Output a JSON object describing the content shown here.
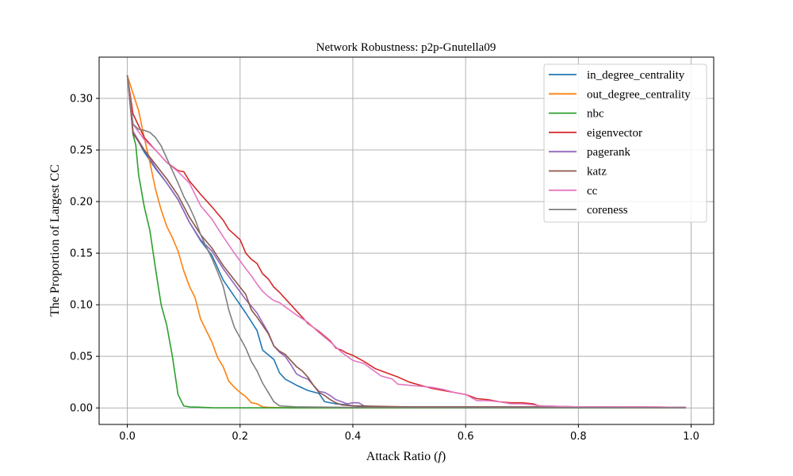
{
  "chart_data": {
    "type": "line",
    "title": "Network Robustness: p2p-Gnutella09",
    "xlabel": "Attack Ratio (",
    "xlabel_var": "f",
    "xlabel_close": ")",
    "ylabel": "The Proportion of Largest CC",
    "xlim": [
      -0.05,
      1.04
    ],
    "ylim": [
      -0.016,
      0.34
    ],
    "xticks": [
      0.0,
      0.2,
      0.4,
      0.6,
      0.8,
      1.0
    ],
    "xtick_labels": [
      "0.0",
      "0.2",
      "0.4",
      "0.6",
      "0.8",
      "1.0"
    ],
    "yticks": [
      0.0,
      0.05,
      0.1,
      0.15,
      0.2,
      0.25,
      0.3
    ],
    "ytick_labels": [
      "0.00",
      "0.05",
      "0.10",
      "0.15",
      "0.20",
      "0.25",
      "0.30"
    ],
    "grid": true,
    "legend_position": "top-right",
    "series": [
      {
        "name": "in_degree_centrality",
        "color": "#1f77b4",
        "x": [
          0,
          0.01,
          0.03,
          0.05,
          0.07,
          0.09,
          0.11,
          0.13,
          0.15,
          0.17,
          0.19,
          0.21,
          0.23,
          0.24,
          0.26,
          0.27,
          0.28,
          0.3,
          0.32,
          0.34,
          0.35,
          0.37,
          0.39,
          0.4,
          0.42,
          0.44,
          0.6,
          0.8,
          0.99
        ],
        "y": [
          0.322,
          0.268,
          0.248,
          0.232,
          0.218,
          0.202,
          0.18,
          0.162,
          0.148,
          0.124,
          0.108,
          0.092,
          0.075,
          0.056,
          0.047,
          0.034,
          0.028,
          0.022,
          0.017,
          0.014,
          0.006,
          0.004,
          0.003,
          0.002,
          0.001,
          0.001,
          0.0005,
          0.0003,
          0.0002
        ]
      },
      {
        "name": "out_degree_centrality",
        "color": "#ff7f0e",
        "x": [
          0,
          0.01,
          0.02,
          0.03,
          0.04,
          0.05,
          0.06,
          0.07,
          0.08,
          0.09,
          0.1,
          0.11,
          0.12,
          0.13,
          0.14,
          0.15,
          0.16,
          0.17,
          0.18,
          0.19,
          0.2,
          0.21,
          0.22,
          0.23,
          0.24,
          0.25,
          0.27,
          0.3,
          0.4,
          0.6,
          0.8,
          0.99
        ],
        "y": [
          0.322,
          0.305,
          0.288,
          0.262,
          0.238,
          0.212,
          0.192,
          0.176,
          0.165,
          0.152,
          0.133,
          0.118,
          0.107,
          0.086,
          0.075,
          0.064,
          0.049,
          0.04,
          0.026,
          0.02,
          0.015,
          0.011,
          0.005,
          0.004,
          0.001,
          0.0006,
          0.0003,
          0.0002,
          0.0001,
          0.0001,
          0.0001,
          0.0001
        ]
      },
      {
        "name": "nbc",
        "color": "#2ca02c",
        "x": [
          0,
          0.005,
          0.01,
          0.015,
          0.02,
          0.03,
          0.04,
          0.05,
          0.06,
          0.07,
          0.08,
          0.09,
          0.1,
          0.11,
          0.15,
          0.3,
          0.6,
          0.99
        ],
        "y": [
          0.322,
          0.3,
          0.265,
          0.255,
          0.226,
          0.195,
          0.172,
          0.135,
          0.1,
          0.08,
          0.05,
          0.013,
          0.002,
          0.001,
          0.0002,
          0.0001,
          0.0001,
          0.0001
        ]
      },
      {
        "name": "eigenvector",
        "color": "#d62728",
        "x": [
          0,
          0.01,
          0.03,
          0.05,
          0.07,
          0.09,
          0.1,
          0.11,
          0.13,
          0.15,
          0.17,
          0.18,
          0.2,
          0.21,
          0.22,
          0.23,
          0.24,
          0.25,
          0.26,
          0.27,
          0.28,
          0.3,
          0.32,
          0.34,
          0.36,
          0.37,
          0.38,
          0.39,
          0.4,
          0.42,
          0.44,
          0.46,
          0.48,
          0.5,
          0.52,
          0.54,
          0.56,
          0.58,
          0.6,
          0.62,
          0.64,
          0.66,
          0.68,
          0.7,
          0.72,
          0.73,
          0.8,
          0.92,
          0.99
        ],
        "y": [
          0.322,
          0.285,
          0.262,
          0.25,
          0.238,
          0.23,
          0.229,
          0.22,
          0.207,
          0.195,
          0.182,
          0.173,
          0.163,
          0.15,
          0.144,
          0.14,
          0.13,
          0.125,
          0.117,
          0.112,
          0.106,
          0.094,
          0.082,
          0.074,
          0.065,
          0.058,
          0.056,
          0.053,
          0.051,
          0.045,
          0.038,
          0.034,
          0.03,
          0.025,
          0.022,
          0.019,
          0.017,
          0.015,
          0.013,
          0.009,
          0.008,
          0.006,
          0.005,
          0.005,
          0.004,
          0.002,
          0.001,
          0.001,
          0.0005
        ]
      },
      {
        "name": "pagerank",
        "color": "#9467bd",
        "x": [
          0,
          0.01,
          0.03,
          0.05,
          0.07,
          0.09,
          0.11,
          0.13,
          0.15,
          0.17,
          0.19,
          0.21,
          0.23,
          0.25,
          0.26,
          0.27,
          0.28,
          0.29,
          0.3,
          0.31,
          0.32,
          0.33,
          0.34,
          0.35,
          0.36,
          0.37,
          0.38,
          0.39,
          0.4,
          0.41,
          0.42,
          0.44,
          0.6,
          0.8,
          0.99
        ],
        "y": [
          0.322,
          0.268,
          0.25,
          0.233,
          0.218,
          0.202,
          0.18,
          0.163,
          0.152,
          0.135,
          0.12,
          0.105,
          0.092,
          0.073,
          0.06,
          0.054,
          0.05,
          0.042,
          0.033,
          0.03,
          0.028,
          0.022,
          0.016,
          0.015,
          0.012,
          0.008,
          0.006,
          0.004,
          0.005,
          0.005,
          0.002,
          0.001,
          0.001,
          0.001,
          0.0005
        ]
      },
      {
        "name": "katz",
        "color": "#8c564b",
        "x": [
          0,
          0.01,
          0.03,
          0.05,
          0.07,
          0.09,
          0.11,
          0.13,
          0.15,
          0.17,
          0.19,
          0.21,
          0.22,
          0.23,
          0.25,
          0.26,
          0.27,
          0.28,
          0.29,
          0.3,
          0.31,
          0.32,
          0.33,
          0.34,
          0.35,
          0.36,
          0.37,
          0.38,
          0.4,
          0.5,
          0.6,
          0.8,
          0.99
        ],
        "y": [
          0.322,
          0.266,
          0.25,
          0.236,
          0.222,
          0.206,
          0.185,
          0.168,
          0.155,
          0.138,
          0.124,
          0.11,
          0.095,
          0.088,
          0.072,
          0.06,
          0.055,
          0.052,
          0.046,
          0.04,
          0.036,
          0.03,
          0.022,
          0.015,
          0.012,
          0.008,
          0.005,
          0.003,
          0.002,
          0.001,
          0.001,
          0.001,
          0.0005
        ]
      },
      {
        "name": "cc",
        "color": "#e377c2",
        "x": [
          0,
          0.01,
          0.03,
          0.05,
          0.07,
          0.09,
          0.11,
          0.13,
          0.15,
          0.17,
          0.19,
          0.21,
          0.22,
          0.23,
          0.24,
          0.25,
          0.26,
          0.27,
          0.28,
          0.3,
          0.32,
          0.34,
          0.36,
          0.38,
          0.4,
          0.42,
          0.44,
          0.45,
          0.47,
          0.48,
          0.5,
          0.52,
          0.54,
          0.56,
          0.58,
          0.6,
          0.62,
          0.64,
          0.66,
          0.68,
          0.7,
          0.72,
          0.73,
          0.8,
          0.92,
          0.99
        ],
        "y": [
          0.322,
          0.275,
          0.26,
          0.25,
          0.238,
          0.229,
          0.218,
          0.196,
          0.183,
          0.166,
          0.15,
          0.135,
          0.128,
          0.12,
          0.113,
          0.108,
          0.104,
          0.102,
          0.098,
          0.09,
          0.083,
          0.073,
          0.064,
          0.054,
          0.046,
          0.043,
          0.035,
          0.031,
          0.028,
          0.023,
          0.022,
          0.021,
          0.02,
          0.018,
          0.015,
          0.013,
          0.007,
          0.007,
          0.006,
          0.004,
          0.004,
          0.003,
          0.002,
          0.001,
          0.001,
          0.0005
        ]
      },
      {
        "name": "coreness",
        "color": "#7f7f7f",
        "x": [
          0,
          0.01,
          0.02,
          0.03,
          0.04,
          0.05,
          0.06,
          0.07,
          0.08,
          0.09,
          0.1,
          0.11,
          0.12,
          0.13,
          0.14,
          0.15,
          0.16,
          0.17,
          0.18,
          0.19,
          0.2,
          0.21,
          0.22,
          0.23,
          0.24,
          0.25,
          0.26,
          0.27,
          0.3,
          0.4,
          0.6,
          0.8,
          0.99
        ],
        "y": [
          0.322,
          0.275,
          0.27,
          0.269,
          0.267,
          0.262,
          0.254,
          0.242,
          0.23,
          0.218,
          0.205,
          0.195,
          0.183,
          0.168,
          0.156,
          0.145,
          0.132,
          0.118,
          0.095,
          0.078,
          0.068,
          0.058,
          0.045,
          0.036,
          0.024,
          0.015,
          0.006,
          0.002,
          0.001,
          0.0005,
          0.0003,
          0.0002,
          0.0001
        ]
      }
    ]
  }
}
